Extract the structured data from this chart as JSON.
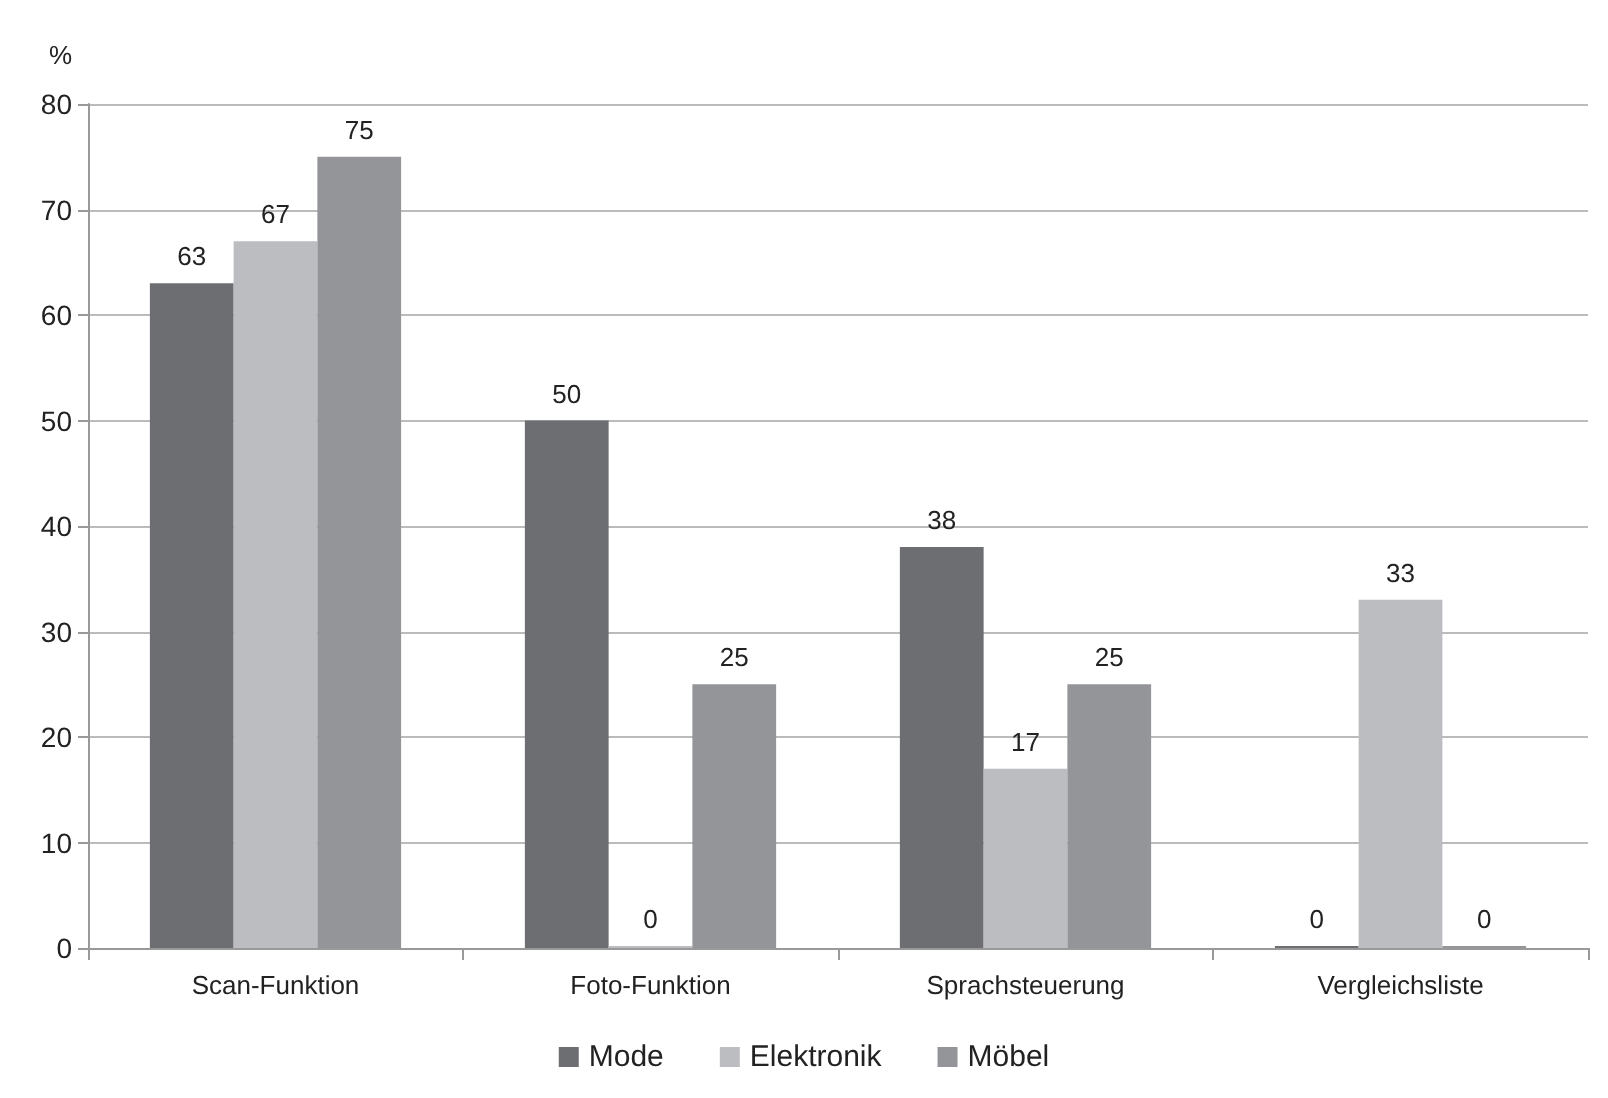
{
  "chart_data": {
    "type": "bar",
    "ylabel": "%",
    "categories": [
      "Scan-Funktion",
      "Foto-Funktion",
      "Sprachsteuerung",
      "Vergleichsliste"
    ],
    "series": [
      {
        "name": "Mode",
        "color": "#6d6e71",
        "values": [
          63,
          50,
          38,
          0
        ]
      },
      {
        "name": "Elektronik",
        "color": "#bcbdc0",
        "values": [
          67,
          0,
          17,
          33
        ]
      },
      {
        "name": "Möbel",
        "color": "#939598",
        "values": [
          75,
          25,
          25,
          0
        ]
      }
    ],
    "ylim": [
      0,
      80
    ],
    "yticks": [
      0,
      10,
      20,
      30,
      40,
      50,
      60,
      70,
      80
    ],
    "grid": "y",
    "legend": "bottom",
    "data_labels": true
  }
}
